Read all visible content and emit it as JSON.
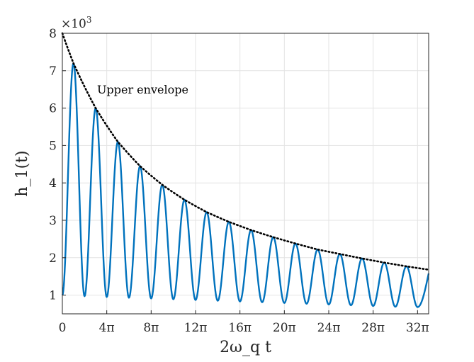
{
  "chart_data": {
    "type": "line",
    "xlabel": "2ω_q t",
    "ylabel": "h_1(t)",
    "y_multiplier_label": "×10",
    "y_multiplier_exponent": "3",
    "annotation": "Upper envelope",
    "xlim": [
      0,
      33
    ],
    "ylim": [
      0.5,
      8
    ],
    "x_ticks": [
      0,
      4,
      8,
      12,
      16,
      20,
      24,
      28,
      32
    ],
    "x_tick_labels": [
      "0",
      "4π",
      "8π",
      "12π",
      "16π",
      "20π",
      "24π",
      "28π",
      "32π"
    ],
    "y_ticks": [
      1,
      2,
      3,
      4,
      5,
      6,
      7,
      8
    ],
    "y_tick_labels": [
      "1",
      "2",
      "3",
      "4",
      "5",
      "6",
      "7",
      "8"
    ],
    "grid": true,
    "series": [
      {
        "style": "solid",
        "color": "#0072BD",
        "envelope_peaks": [
          {
            "x": 1,
            "y": 7.2
          },
          {
            "x": 3,
            "y": 6.0
          },
          {
            "x": 5,
            "y": 5.1
          },
          {
            "x": 7,
            "y": 4.45
          },
          {
            "x": 9,
            "y": 3.95
          },
          {
            "x": 11,
            "y": 3.55
          },
          {
            "x": 13,
            "y": 3.22
          },
          {
            "x": 15,
            "y": 2.96
          },
          {
            "x": 17,
            "y": 2.74
          },
          {
            "x": 19,
            "y": 2.55
          },
          {
            "x": 21,
            "y": 2.38
          },
          {
            "x": 23,
            "y": 2.22
          },
          {
            "x": 25,
            "y": 2.1
          },
          {
            "x": 27,
            "y": 1.98
          },
          {
            "x": 29,
            "y": 1.87
          },
          {
            "x": 31,
            "y": 1.77
          }
        ],
        "troughs": [
          {
            "x": 0,
            "y": 1.0
          },
          {
            "x": 2,
            "y": 0.97
          },
          {
            "x": 4,
            "y": 0.95
          },
          {
            "x": 6,
            "y": 0.93
          },
          {
            "x": 8,
            "y": 0.91
          },
          {
            "x": 10,
            "y": 0.89
          },
          {
            "x": 12,
            "y": 0.87
          },
          {
            "x": 14,
            "y": 0.85
          },
          {
            "x": 16,
            "y": 0.83
          },
          {
            "x": 18,
            "y": 0.81
          },
          {
            "x": 20,
            "y": 0.79
          },
          {
            "x": 22,
            "y": 0.77
          },
          {
            "x": 24,
            "y": 0.75
          },
          {
            "x": 26,
            "y": 0.73
          },
          {
            "x": 28,
            "y": 0.71
          },
          {
            "x": 30,
            "y": 0.69
          },
          {
            "x": 32,
            "y": 0.68
          }
        ],
        "end_point": {
          "x": 33,
          "y": 1.58
        }
      },
      {
        "style": "dotted",
        "color": "#000000",
        "x": [
          0,
          1,
          3,
          5,
          7,
          9,
          11,
          13,
          15,
          17,
          19,
          21,
          23,
          25,
          27,
          29,
          31,
          33
        ],
        "y": [
          8.0,
          7.2,
          6.0,
          5.1,
          4.45,
          3.95,
          3.55,
          3.22,
          2.96,
          2.74,
          2.55,
          2.38,
          2.22,
          2.1,
          1.98,
          1.87,
          1.77,
          1.68
        ]
      }
    ]
  }
}
